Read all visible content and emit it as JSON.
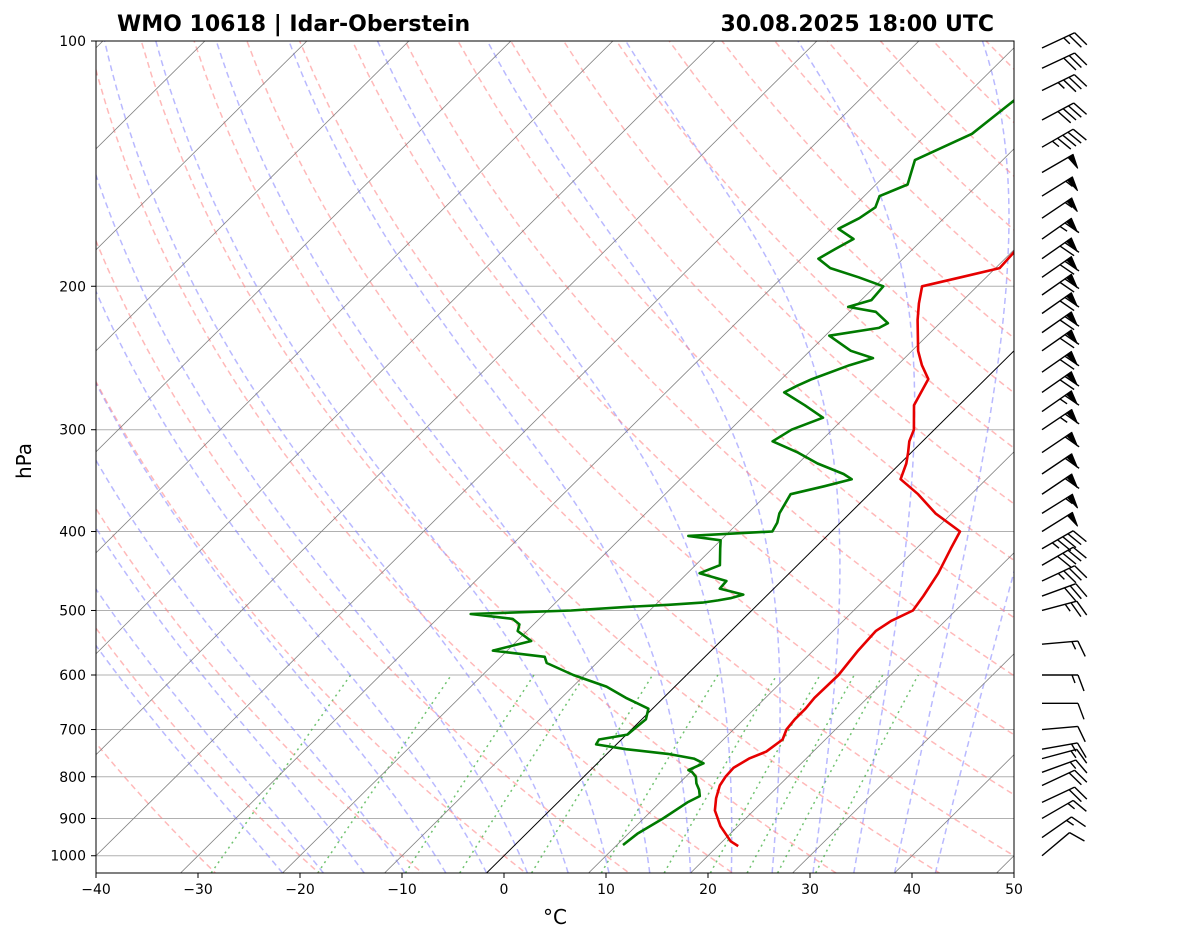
{
  "title_left": "WMO 10618 | Idar-Oberstein",
  "title_right": "30.08.2025 18:00 UTC",
  "colors": {
    "temperature": "#e60000",
    "dewpoint": "#007a00",
    "dry_adiabat": "#ff8080",
    "moist_adiabat": "#8080ff",
    "mixing_ratio": "#33aa33",
    "isotherm": "#808080",
    "grid": "#b0b0b0"
  },
  "chart_data": {
    "type": "line",
    "title": "WMO 10618 | Idar-Oberstein",
    "subtitle": "30.08.2025 18:00 UTC",
    "xlabel": "°C",
    "ylabel": "hPa",
    "xlim": [
      -40,
      50
    ],
    "ylim": [
      1050,
      100
    ],
    "y_scale": "log",
    "x_ticks": [
      -40,
      -30,
      -20,
      -10,
      0,
      10,
      20,
      30,
      40,
      50
    ],
    "y_ticks": [
      100,
      200,
      300,
      400,
      500,
      600,
      700,
      800,
      900,
      1000
    ],
    "x_tick_labels": [
      "−40",
      "−30",
      "−20",
      "−10",
      "0",
      "10",
      "20",
      "30",
      "40",
      "50"
    ],
    "y_tick_labels": [
      "100",
      "200",
      "300",
      "400",
      "500",
      "600",
      "700",
      "800",
      "900",
      "1000"
    ],
    "grid": true,
    "series": [
      {
        "key": "temperature",
        "pressure": [
          973,
          960,
          920,
          880,
          850,
          820,
          800,
          780,
          760,
          745,
          720,
          700,
          680,
          660,
          640,
          600,
          560,
          530,
          515,
          500,
          480,
          450,
          420,
          400,
          380,
          360,
          345,
          330,
          320,
          310,
          300,
          280,
          260,
          250,
          240,
          220,
          210,
          200,
          195,
          190,
          180,
          170,
          160,
          150,
          140,
          130,
          120,
          110,
          105,
          100
        ],
        "value": [
          22.0,
          20.8,
          18.3,
          16.2,
          15.1,
          14.2,
          13.9,
          13.8,
          14.4,
          15.4,
          15.8,
          15.2,
          15.0,
          15.0,
          14.8,
          14.9,
          14.4,
          14.2,
          14.7,
          15.8,
          15.4,
          14.6,
          13.4,
          12.6,
          8.4,
          4.8,
          1.6,
          0.6,
          -0.3,
          -1.3,
          -2.0,
          -4.4,
          -5.6,
          -7.6,
          -9.4,
          -12.5,
          -14.0,
          -15.4,
          -12.5,
          -9.6,
          -9.8,
          -10.6,
          -11.6,
          -11.5,
          -13.0,
          -13.6,
          -15.2,
          -16.3,
          -16.7,
          -17.3
        ]
      },
      {
        "key": "dewpoint",
        "pressure": [
          970,
          940,
          900,
          860,
          845,
          830,
          815,
          800,
          790,
          785,
          770,
          760,
          750,
          740,
          730,
          720,
          710,
          700,
          680,
          660,
          640,
          620,
          600,
          580,
          570,
          560,
          545,
          530,
          520,
          512,
          505,
          500,
          495,
          492,
          489,
          486,
          483,
          478,
          470,
          460,
          450,
          440,
          420,
          410,
          405,
          400,
          390,
          380,
          360,
          352,
          345,
          340,
          330,
          320,
          310,
          300,
          290,
          280,
          270,
          265,
          260,
          250,
          245,
          240,
          230,
          225,
          222,
          215,
          212,
          208,
          200,
          195,
          190,
          185,
          180,
          175,
          170,
          165,
          160,
          155,
          150,
          140,
          130,
          120,
          110,
          100
        ],
        "value": [
          10.6,
          10.9,
          11.9,
          12.7,
          13.3,
          12.6,
          11.7,
          11.0,
          10.2,
          9.6,
          10.4,
          9.0,
          6.0,
          1.4,
          -2.0,
          -2.2,
          0.1,
          0.2,
          0.4,
          -0.4,
          -3.7,
          -6.7,
          -11.1,
          -14.9,
          -15.7,
          -21.4,
          -18.6,
          -20.9,
          -21.4,
          -22.6,
          -27.2,
          -17.7,
          -12.6,
          -8.7,
          -5.6,
          -4.3,
          -3.3,
          -2.4,
          -5.3,
          -5.4,
          -8.8,
          -7.6,
          -9.2,
          -10.0,
          -13.6,
          -5.8,
          -6.2,
          -6.9,
          -7.7,
          -5.2,
          -3.2,
          -4.5,
          -8.1,
          -11.1,
          -14.7,
          -14.0,
          -12.1,
          -15.1,
          -18.4,
          -17.8,
          -17.0,
          -14.7,
          -13.1,
          -16.0,
          -19.6,
          -15.5,
          -15.1,
          -17.4,
          -20.6,
          -19.0,
          -19.2,
          -22.5,
          -26.2,
          -28.3,
          -27.6,
          -26.8,
          -29.3,
          -28.3,
          -27.8,
          -28.5,
          -26.9,
          -28.6,
          -25.6,
          -24.9,
          -24.1,
          -23.4
        ]
      }
    ],
    "background_lines": [
      "isotherms",
      "dry adiabats",
      "moist adiabats",
      "mixing ratio lines",
      "0 °C isotherm"
    ],
    "wind_barbs": {
      "pressure": [
        1000,
        950,
        900,
        860,
        820,
        790,
        760,
        740,
        700,
        650,
        600,
        550,
        500,
        480,
        460,
        440,
        420,
        400,
        380,
        360,
        340,
        320,
        300,
        285,
        270,
        255,
        240,
        228,
        216,
        205,
        195,
        185,
        175,
        165,
        155,
        145,
        135,
        125,
        115,
        108,
        102
      ],
      "speed_kt": [
        10,
        15,
        15,
        20,
        20,
        15,
        15,
        15,
        10,
        10,
        15,
        15,
        25,
        30,
        35,
        40,
        45,
        50,
        55,
        60,
        60,
        60,
        65,
        65,
        70,
        70,
        70,
        70,
        70,
        70,
        70,
        70,
        65,
        55,
        55,
        50,
        45,
        40,
        35,
        30,
        25
      ],
      "direction_deg": [
        230,
        235,
        240,
        245,
        245,
        250,
        255,
        260,
        265,
        270,
        270,
        265,
        255,
        250,
        245,
        240,
        240,
        238,
        238,
        236,
        236,
        236,
        236,
        235,
        235,
        235,
        235,
        235,
        235,
        235,
        235,
        235,
        235,
        236,
        238,
        240,
        240,
        242,
        244,
        245,
        245
      ]
    }
  }
}
